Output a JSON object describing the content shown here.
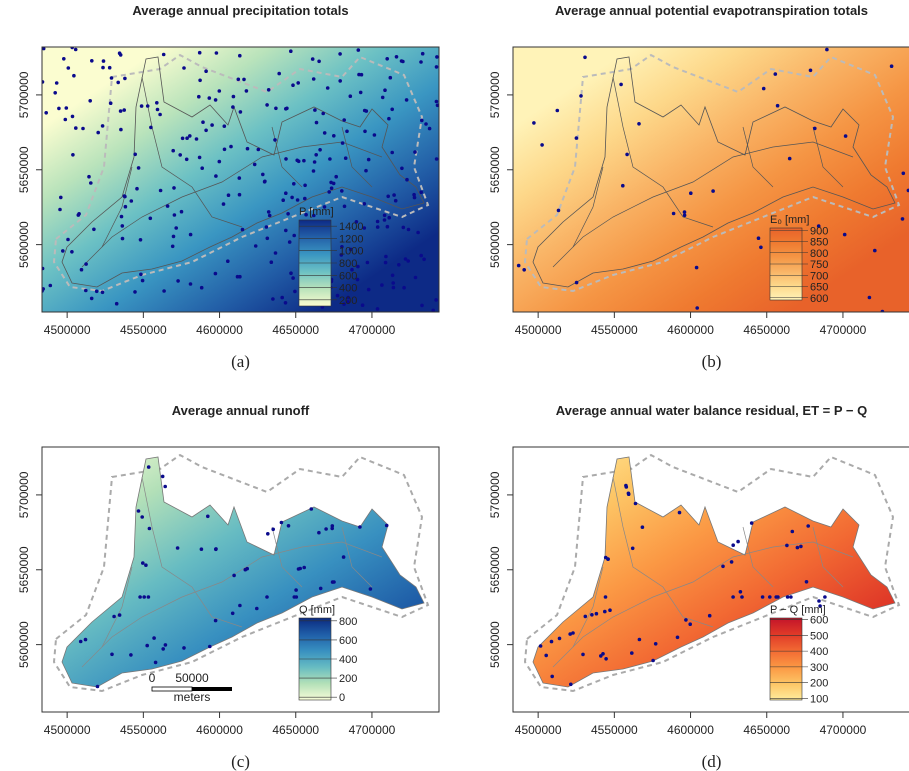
{
  "chart_data": [
    {
      "type": "map",
      "title": "Average annual precipitation totals",
      "caption": "(a)",
      "xlim": [
        4483500,
        4744000
      ],
      "ylim": [
        5555000,
        5732000
      ],
      "xticks": [
        4500000,
        4550000,
        4600000,
        4650000,
        4700000
      ],
      "yticks": [
        5600000,
        5650000,
        5700000
      ],
      "legend": {
        "title": "P [mm]",
        "lim": [
          100,
          1500
        ],
        "ticks": [
          200,
          400,
          600,
          800,
          1000,
          1200,
          1400
        ],
        "colors": [
          "#fbfdd0",
          "#b9e3bb",
          "#6cc1c4",
          "#3a96c2",
          "#2360a8",
          "#0d2a86"
        ]
      }
    },
    {
      "type": "map",
      "title": "Average annual potential evapotranspiration totals",
      "caption": "(b)",
      "xlim": [
        4483500,
        4744000
      ],
      "ylim": [
        5555000,
        5732000
      ],
      "xticks": [
        4500000,
        4550000,
        4600000,
        4650000,
        4700000
      ],
      "yticks": [
        5600000,
        5650000,
        5700000
      ],
      "legend": {
        "title": "E₀ [mm]",
        "lim": [
          590,
          910
        ],
        "ticks": [
          600,
          650,
          700,
          750,
          800,
          850,
          900
        ],
        "colors": [
          "#fff3b8",
          "#fdd88a",
          "#f9b466",
          "#f59544",
          "#ef7a30",
          "#e8622a"
        ]
      }
    },
    {
      "type": "map",
      "title": "Average annual runoff",
      "caption": "(c)",
      "xlim": [
        4483500,
        4744000
      ],
      "ylim": [
        5555000,
        5732000
      ],
      "xticks": [
        4500000,
        4550000,
        4600000,
        4650000,
        4700000
      ],
      "yticks": [
        5600000,
        5650000,
        5700000
      ],
      "legend": {
        "title": "Q [mm]",
        "lim": [
          -30,
          830
        ],
        "ticks": [
          0,
          200,
          400,
          600,
          800
        ],
        "colors": [
          "#f7fcd8",
          "#b3e0b8",
          "#67bcc2",
          "#3890c0",
          "#1f5ea8",
          "#0b2a80"
        ]
      },
      "scale_bar": {
        "labels": [
          "0",
          "50000"
        ],
        "unit": "meters"
      }
    },
    {
      "type": "map",
      "title": "Average annual water balance residual, ET = P − Q",
      "caption": "(d)",
      "xlim": [
        4483500,
        4744000
      ],
      "ylim": [
        5555000,
        5732000
      ],
      "xticks": [
        4500000,
        4550000,
        4600000,
        4650000,
        4700000
      ],
      "yticks": [
        5600000,
        5650000,
        5700000
      ],
      "legend": {
        "title": "P − Q [mm]",
        "lim": [
          90,
          610
        ],
        "ticks": [
          100,
          200,
          300,
          400,
          500,
          600
        ],
        "colors": [
          "#ffec9c",
          "#fdc565",
          "#fb9844",
          "#f26a33",
          "#e03a28",
          "#c3142a"
        ]
      }
    }
  ]
}
